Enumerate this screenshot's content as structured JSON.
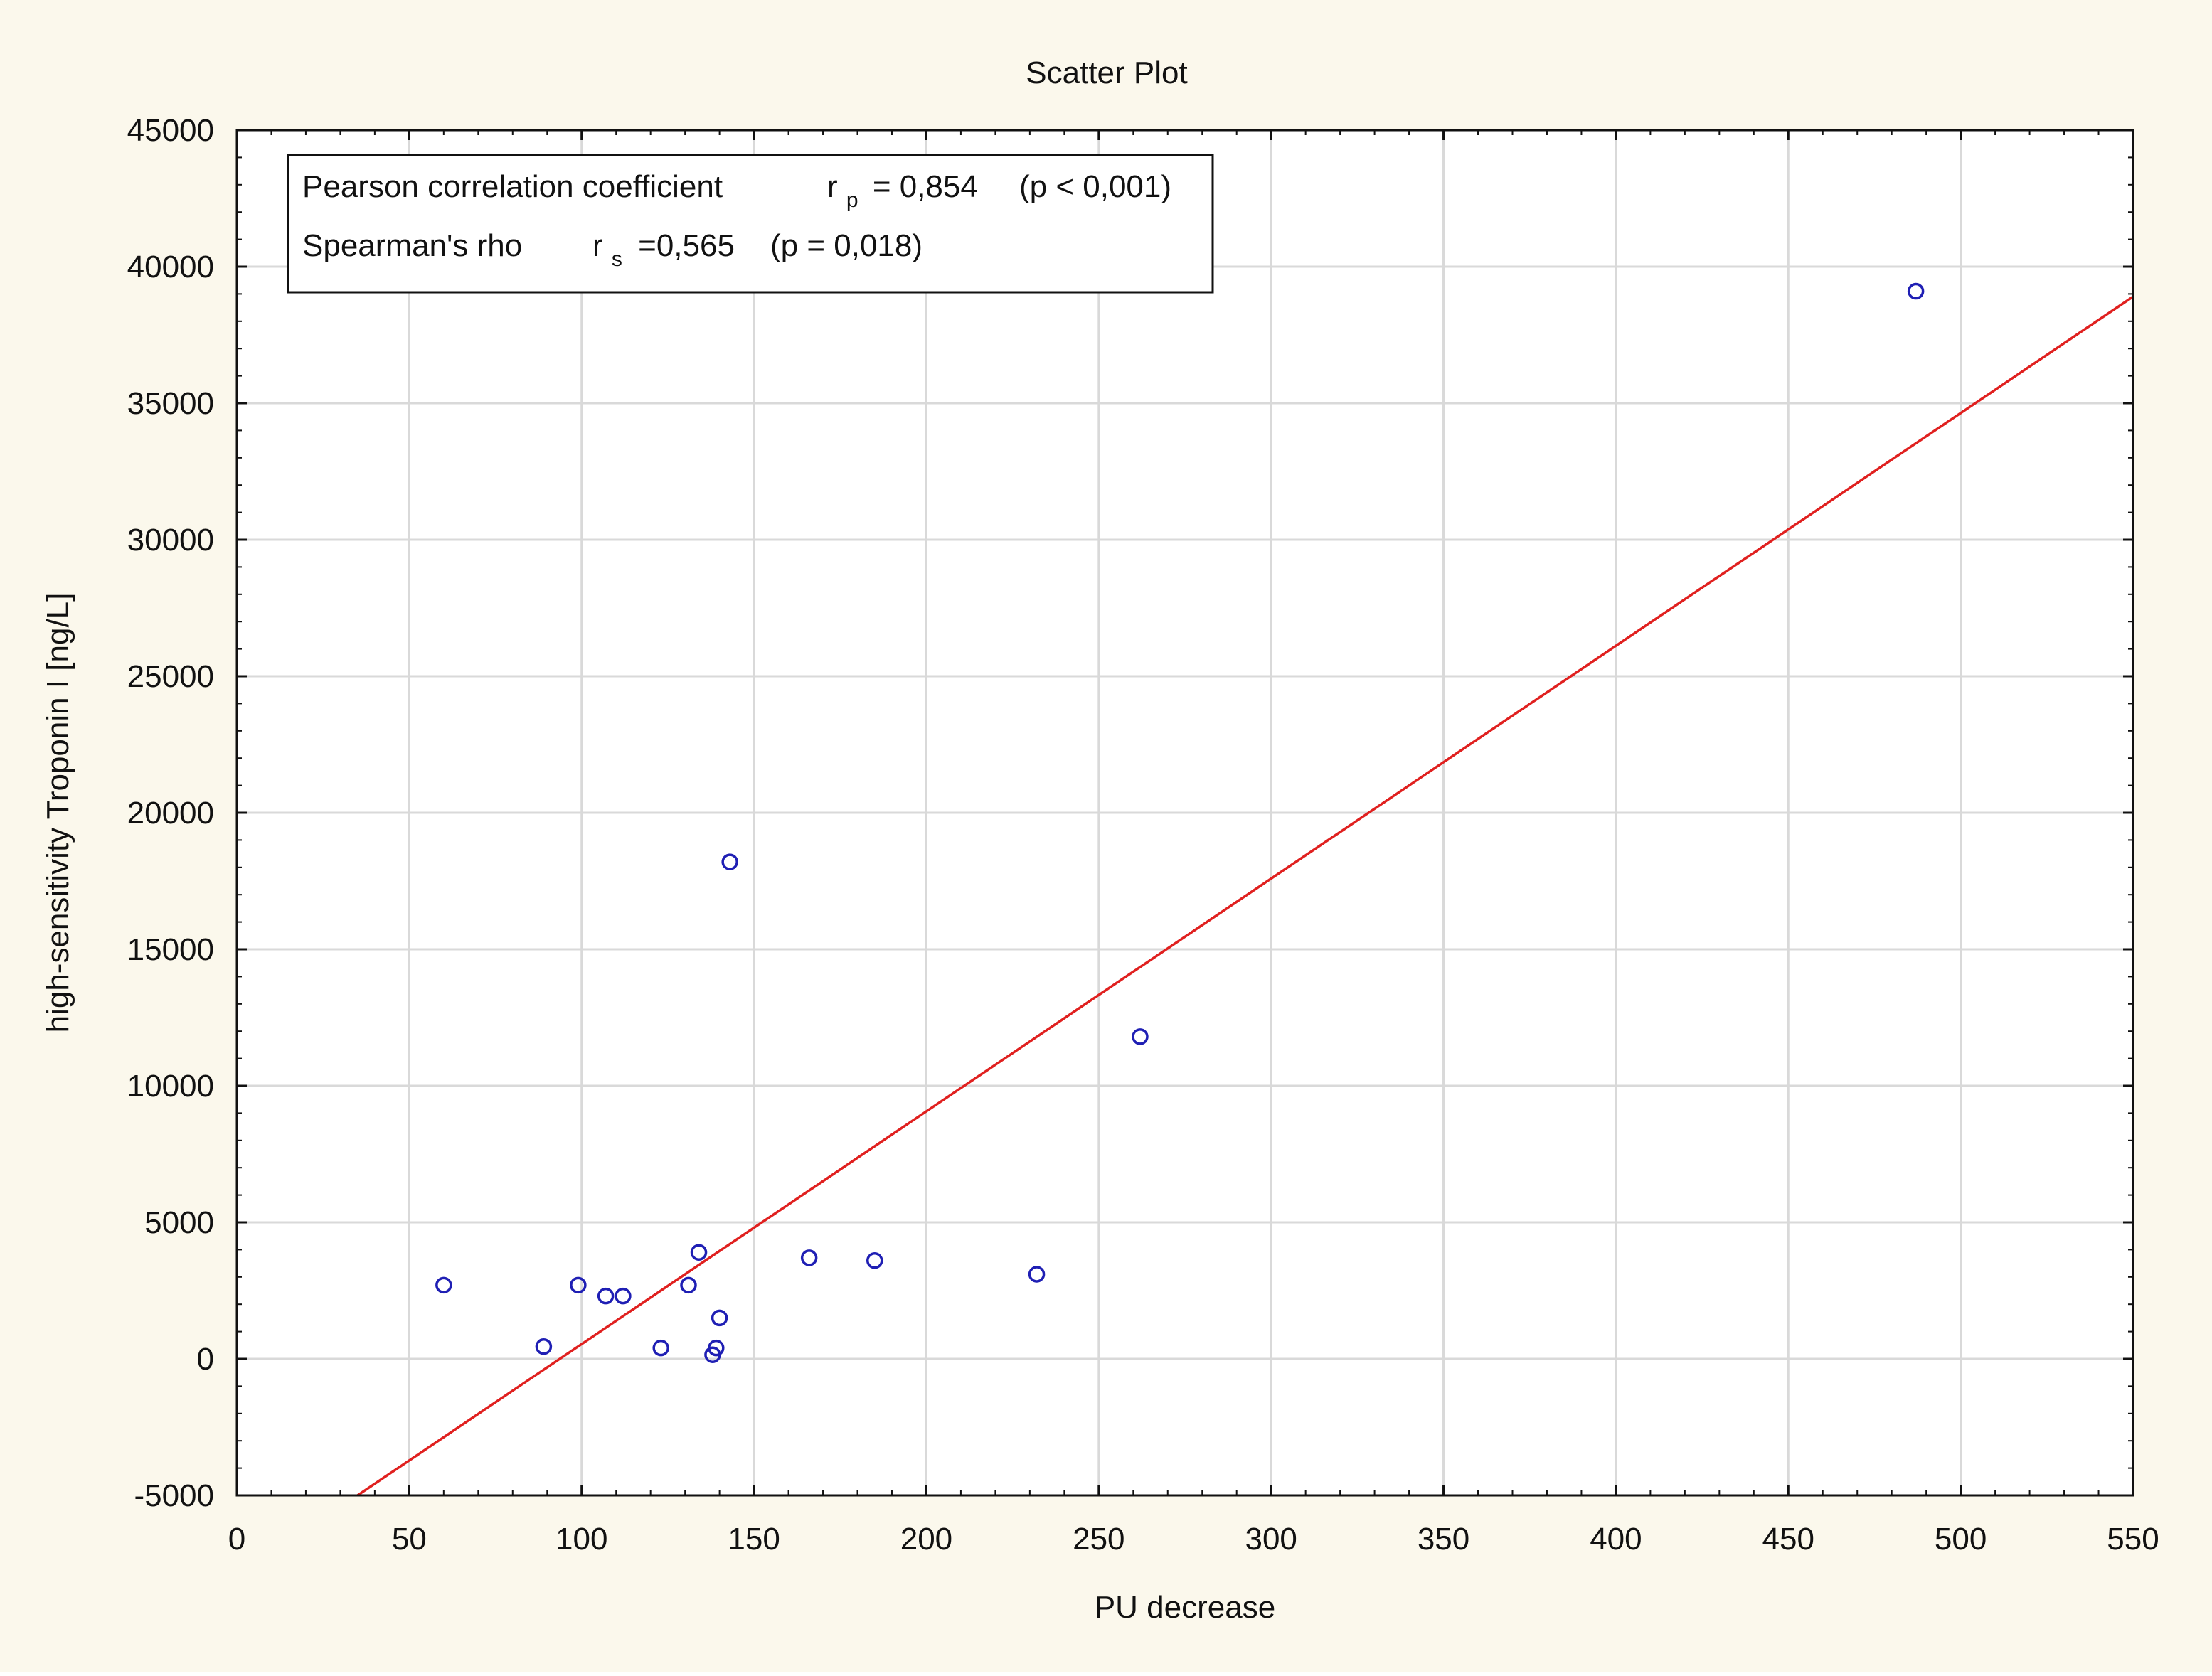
{
  "chart_data": {
    "type": "scatter",
    "title": "Scatter Plot",
    "xlabel": "PU decrease",
    "ylabel": "high-sensitivity Troponin I [ng/L]",
    "xlim": [
      0,
      550
    ],
    "ylim": [
      -5000,
      45000
    ],
    "xticks": [
      0,
      50,
      100,
      150,
      200,
      250,
      300,
      350,
      400,
      450,
      500,
      550
    ],
    "yticks": [
      -5000,
      0,
      5000,
      10000,
      15000,
      20000,
      25000,
      30000,
      35000,
      40000,
      45000
    ],
    "grid": true,
    "points": [
      {
        "x": 60,
        "y": 2700
      },
      {
        "x": 89,
        "y": 450
      },
      {
        "x": 99,
        "y": 2700
      },
      {
        "x": 107,
        "y": 2300
      },
      {
        "x": 112,
        "y": 2300
      },
      {
        "x": 123,
        "y": 400
      },
      {
        "x": 131,
        "y": 2700
      },
      {
        "x": 134,
        "y": 3900
      },
      {
        "x": 138,
        "y": 150
      },
      {
        "x": 139,
        "y": 400
      },
      {
        "x": 140,
        "y": 1500
      },
      {
        "x": 143,
        "y": 18200
      },
      {
        "x": 166,
        "y": 3700
      },
      {
        "x": 185,
        "y": 3600
      },
      {
        "x": 232,
        "y": 3100
      },
      {
        "x": 262,
        "y": 11800
      },
      {
        "x": 487,
        "y": 39100
      }
    ],
    "fit_line": {
      "x1": 35,
      "y1": -5000,
      "x2": 550,
      "y2": 38900
    },
    "annotation": {
      "line1": {
        "text": "Pearson correlation coefficient",
        "var": "r",
        "sub": "p",
        "value": "= 0,854",
        "p": "(p < 0,001)"
      },
      "line2": {
        "text": "Spearman's rho",
        "var": "r",
        "sub": "s",
        "value": "=0,565",
        "p": "(p = 0,018)"
      }
    },
    "colors": {
      "background": "#fbf8ec",
      "plot_background": "#ffffff",
      "grid": "#d9d9d9",
      "points": "#1f1fb4",
      "fit_line": "#e0201f",
      "axis": "#111111"
    }
  }
}
